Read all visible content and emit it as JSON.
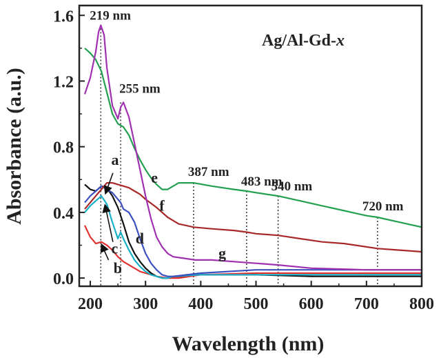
{
  "chart_data": {
    "type": "line",
    "title": "",
    "inset_label_main": "Ag/Al-Gd-",
    "inset_label_italic": "x",
    "xlabel": "Wavelength (nm)",
    "ylabel": "Absorbance (a.u.)",
    "xlim": [
      180,
      800
    ],
    "ylim": [
      -0.05,
      1.66
    ],
    "xticks": [
      200,
      300,
      400,
      500,
      600,
      700,
      800
    ],
    "yticks": [
      0.0,
      0.4,
      0.8,
      1.2,
      1.6
    ],
    "ytick_labels": [
      "0.0",
      "0.4",
      "0.8",
      "1.2",
      "1.6"
    ],
    "grid": false,
    "series": [
      {
        "name": "a",
        "color": "#111111",
        "x": [
          190,
          200,
          210,
          220,
          230,
          240,
          250,
          255,
          260,
          270,
          280,
          290,
          300,
          310,
          320,
          330,
          340,
          350,
          360,
          400,
          500,
          600,
          700,
          800
        ],
        "y": [
          0.57,
          0.54,
          0.53,
          0.56,
          0.55,
          0.5,
          0.43,
          0.38,
          0.33,
          0.22,
          0.15,
          0.1,
          0.06,
          0.03,
          0.01,
          0.0,
          0.0,
          0.01,
          0.01,
          0.02,
          0.02,
          0.01,
          0.01,
          0.01
        ]
      },
      {
        "name": "b",
        "color": "#e03030",
        "x": [
          190,
          200,
          210,
          220,
          230,
          240,
          250,
          260,
          270,
          280,
          290,
          300,
          320,
          340,
          360,
          400,
          500,
          600,
          700,
          800
        ],
        "y": [
          0.32,
          0.25,
          0.21,
          0.22,
          0.2,
          0.17,
          0.13,
          0.1,
          0.08,
          0.06,
          0.04,
          0.03,
          0.01,
          0.0,
          0.0,
          0.02,
          0.03,
          0.03,
          0.03,
          0.03
        ]
      },
      {
        "name": "c",
        "color": "#18b0c8",
        "x": [
          190,
          200,
          210,
          220,
          230,
          240,
          250,
          255,
          260,
          270,
          280,
          290,
          300,
          310,
          320,
          330,
          340,
          350,
          400,
          500,
          600,
          700,
          800
        ],
        "y": [
          0.4,
          0.44,
          0.47,
          0.5,
          0.45,
          0.34,
          0.24,
          0.28,
          0.24,
          0.17,
          0.11,
          0.07,
          0.04,
          0.02,
          0.01,
          0.0,
          0.0,
          0.01,
          0.02,
          0.02,
          0.02,
          0.02,
          0.02
        ]
      },
      {
        "name": "d",
        "color": "#3a50c0",
        "x": [
          190,
          200,
          210,
          220,
          230,
          240,
          250,
          255,
          260,
          270,
          280,
          290,
          300,
          310,
          320,
          330,
          340,
          350,
          400,
          500,
          600,
          700,
          800
        ],
        "y": [
          0.46,
          0.5,
          0.53,
          0.56,
          0.54,
          0.52,
          0.48,
          0.46,
          0.42,
          0.4,
          0.34,
          0.24,
          0.15,
          0.09,
          0.05,
          0.02,
          0.01,
          0.01,
          0.03,
          0.05,
          0.05,
          0.05,
          0.05
        ]
      },
      {
        "name": "e",
        "color": "#22a050",
        "x": [
          190,
          200,
          210,
          220,
          230,
          240,
          250,
          260,
          270,
          280,
          290,
          300,
          310,
          320,
          330,
          340,
          350,
          360,
          380,
          387,
          420,
          460,
          483,
          500,
          540,
          580,
          620,
          660,
          700,
          720,
          760,
          800
        ],
        "y": [
          1.4,
          1.37,
          1.33,
          1.26,
          1.13,
          1.0,
          0.94,
          0.92,
          0.87,
          0.79,
          0.72,
          0.66,
          0.61,
          0.57,
          0.54,
          0.54,
          0.56,
          0.58,
          0.58,
          0.58,
          0.56,
          0.54,
          0.53,
          0.52,
          0.5,
          0.47,
          0.44,
          0.41,
          0.38,
          0.37,
          0.34,
          0.31
        ]
      },
      {
        "name": "f",
        "color": "#a82828",
        "x": [
          190,
          200,
          210,
          220,
          230,
          240,
          250,
          260,
          270,
          280,
          290,
          300,
          320,
          340,
          360,
          387,
          420,
          460,
          483,
          500,
          540,
          580,
          620,
          660,
          700,
          720,
          760,
          800
        ],
        "y": [
          0.42,
          0.46,
          0.5,
          0.54,
          0.58,
          0.58,
          0.57,
          0.56,
          0.55,
          0.53,
          0.51,
          0.48,
          0.43,
          0.37,
          0.33,
          0.31,
          0.3,
          0.29,
          0.28,
          0.27,
          0.26,
          0.24,
          0.22,
          0.21,
          0.19,
          0.18,
          0.17,
          0.16
        ]
      },
      {
        "name": "g",
        "color": "#a030b0",
        "x": [
          190,
          200,
          210,
          215,
          219,
          225,
          230,
          240,
          250,
          255,
          260,
          270,
          280,
          290,
          300,
          310,
          320,
          330,
          340,
          350,
          370,
          390,
          420,
          460,
          500,
          540,
          600,
          700,
          800
        ],
        "y": [
          1.12,
          1.22,
          1.38,
          1.5,
          1.54,
          1.48,
          1.28,
          1.05,
          0.97,
          1.04,
          1.07,
          0.98,
          0.82,
          0.66,
          0.5,
          0.36,
          0.25,
          0.19,
          0.15,
          0.13,
          0.12,
          0.11,
          0.11,
          0.1,
          0.09,
          0.08,
          0.06,
          0.05,
          0.05
        ]
      }
    ],
    "peak_annotations": [
      {
        "label": "219 nm",
        "x": 219,
        "y": 1.54
      },
      {
        "label": "255 nm",
        "x": 255,
        "y": 1.07
      },
      {
        "label": "387 nm",
        "x": 387,
        "y": 0.58
      },
      {
        "label": "483 nm",
        "x": 483,
        "y": 0.53
      },
      {
        "label": "540 nm",
        "x": 540,
        "y": 0.5
      },
      {
        "label": "720 nm",
        "x": 720,
        "y": 0.37
      }
    ],
    "curve_labels": [
      {
        "label": "a",
        "x": 238,
        "y": 0.69
      },
      {
        "label": "b",
        "x": 242,
        "y": 0.03
      },
      {
        "label": "c",
        "x": 238,
        "y": 0.15
      },
      {
        "label": "d",
        "x": 282,
        "y": 0.21
      },
      {
        "label": "e",
        "x": 310,
        "y": 0.58
      },
      {
        "label": "f",
        "x": 325,
        "y": 0.41
      },
      {
        "label": "g",
        "x": 432,
        "y": 0.12
      }
    ]
  }
}
